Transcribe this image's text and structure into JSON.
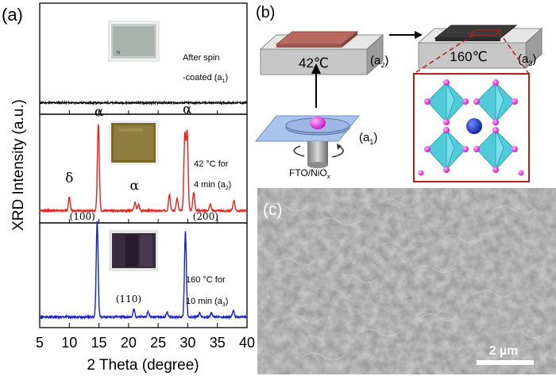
{
  "panel_labels": {
    "a": "(a)",
    "b": "(b)",
    "c": "(c)"
  },
  "chart_data": {
    "type": "line",
    "xlabel": "2 Theta (degree)",
    "ylabel": "XRD Intensity (a.u.)",
    "xlim": [
      5,
      40
    ],
    "xticks": [
      "5",
      "10",
      "15",
      "20",
      "25",
      "30",
      "35",
      "40"
    ],
    "colors": {
      "a1": "#111111",
      "a2": "#e8201c",
      "a3": "#1522c6"
    },
    "series": [
      {
        "name": "a1",
        "label_line1": "After spin",
        "label_line2": "-coated (a",
        "label_sub": "1",
        "label_close": ")",
        "peaks": [],
        "annotations": []
      },
      {
        "name": "a2",
        "label_line1": "42 °C for",
        "label_line2": "4 min (a",
        "label_sub": "2",
        "label_close": ")",
        "peaks": [
          {
            "x": 10.0,
            "h": 0.14
          },
          {
            "x": 14.9,
            "h": 0.93
          },
          {
            "x": 21.1,
            "h": 0.09
          },
          {
            "x": 21.7,
            "h": 0.06
          },
          {
            "x": 26.9,
            "h": 0.17
          },
          {
            "x": 28.2,
            "h": 0.13
          },
          {
            "x": 29.5,
            "h": 0.8
          },
          {
            "x": 29.9,
            "h": 0.82
          },
          {
            "x": 31.0,
            "h": 0.2
          },
          {
            "x": 33.8,
            "h": 0.07
          },
          {
            "x": 37.8,
            "h": 0.11
          }
        ],
        "annotations": [
          {
            "text": "δ",
            "x": 10.0,
            "y": 0.32
          },
          {
            "text": "α",
            "x": 15.0,
            "y": 1.03
          },
          {
            "text": "α",
            "x": 21.0,
            "y": 0.24
          },
          {
            "text": "α",
            "x": 29.9,
            "y": 1.06
          }
        ]
      },
      {
        "name": "a3",
        "label_line1": "160 °C for",
        "label_line2": "10 min (a",
        "label_sub": "3",
        "label_close": ")",
        "peaks": [
          {
            "x": 14.7,
            "h": 1.02
          },
          {
            "x": 20.9,
            "h": 0.08
          },
          {
            "x": 23.3,
            "h": 0.06
          },
          {
            "x": 26.5,
            "h": 0.05
          },
          {
            "x": 29.6,
            "h": 0.92
          },
          {
            "x": 32.0,
            "h": 0.04
          },
          {
            "x": 34.0,
            "h": 0.04
          },
          {
            "x": 37.7,
            "h": 0.07
          }
        ],
        "annotations": [
          {
            "text": "(100)",
            "x": 12.2,
            "y": 1.06
          },
          {
            "text": "(110)",
            "x": 20.0,
            "y": 0.18
          },
          {
            "text": "(200)",
            "x": 33.0,
            "y": 1.06
          }
        ]
      }
    ]
  },
  "schematic": {
    "stage_a1_label": "a",
    "stage_a1_sub": "1",
    "stage_a2_temp": "42℃",
    "stage_a2_label": "a",
    "stage_a2_sub": "2",
    "stage_a3_temp": "160℃",
    "stage_a3_label": "a",
    "stage_a3_sub": "3",
    "substrate_label": "FTO/NiO",
    "substrate_sub": "x",
    "colors": {
      "film_a2": "#b86a62",
      "film_a3": "#3a3a3a",
      "frame": "#b0201c",
      "octahedron": "#41c7d8",
      "anion": "#d61fd1",
      "cation": "#1833c8"
    }
  },
  "sem": {
    "scale_bar_label": "2 µm"
  }
}
